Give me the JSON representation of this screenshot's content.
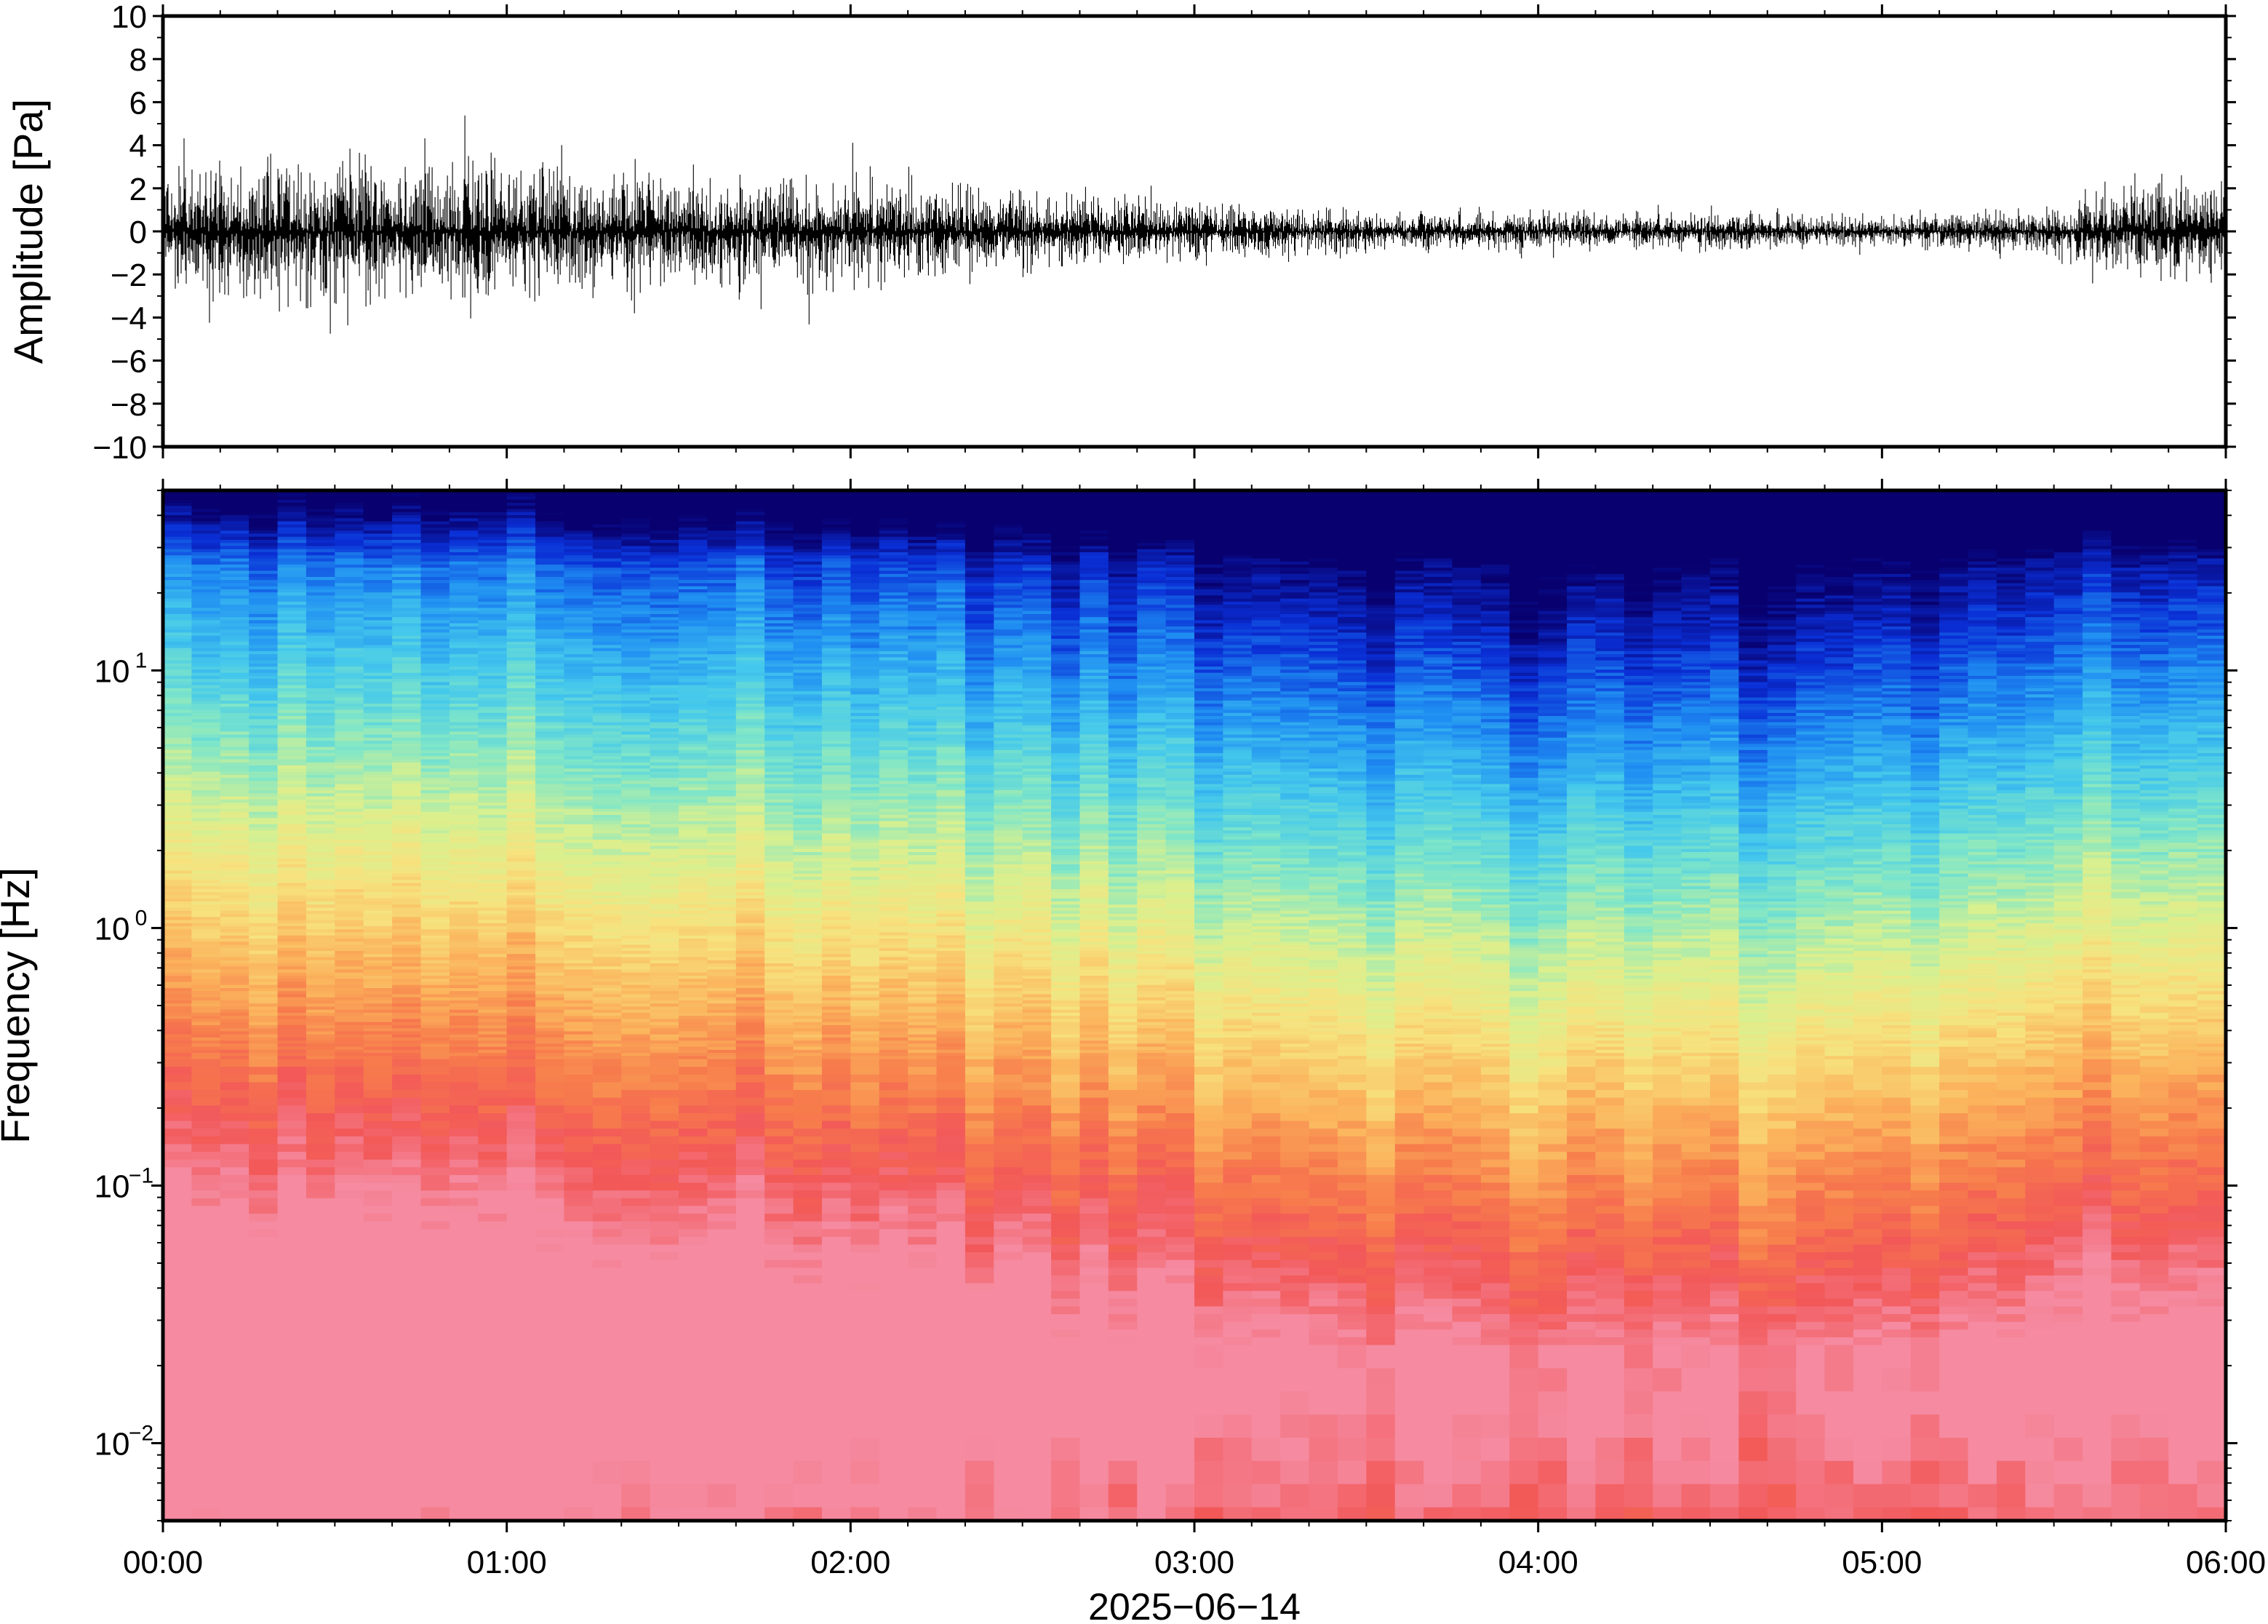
{
  "chart_data": [
    {
      "type": "line",
      "panel": "waveform",
      "ylabel": "Amplitude [Pa]",
      "ylim": [
        -10,
        10
      ],
      "yticks": [
        "10",
        "8",
        "6",
        "4",
        "2",
        "0",
        "−2",
        "−4",
        "−6",
        "−8",
        "−10"
      ],
      "xlim": [
        "00:00",
        "06:00"
      ],
      "grid": false,
      "color": "#000000",
      "envelope": {
        "x": [
          "00:00",
          "00:30",
          "01:00",
          "01:30",
          "02:00",
          "02:30",
          "03:00",
          "03:30",
          "04:00",
          "04:30",
          "05:00",
          "05:30",
          "05:45",
          "06:00"
        ],
        "typical_abs": [
          1.6,
          1.7,
          1.5,
          1.3,
          1.2,
          0.9,
          0.7,
          0.45,
          0.4,
          0.4,
          0.35,
          0.5,
          1.3,
          1.0
        ],
        "peak_abs": [
          3.2,
          3.8,
          3.0,
          2.7,
          2.8,
          2.2,
          1.4,
          1.0,
          1.3,
          0.9,
          0.8,
          1.2,
          2.9,
          2.0
        ]
      }
    },
    {
      "type": "heatmap",
      "panel": "spectrogram",
      "ylabel": "Frequency [Hz]",
      "yscale": "log",
      "ylim": [
        0.005,
        50
      ],
      "yticks": [
        {
          "base": "10",
          "exp": "1",
          "value": 10
        },
        {
          "base": "10",
          "exp": "0",
          "value": 1
        },
        {
          "base": "10",
          "exp": "−1",
          "value": 0.1
        },
        {
          "base": "10",
          "exp": "−2",
          "value": 0.01
        }
      ],
      "xlabel": "2025−06−14",
      "xticks": [
        "00:00",
        "01:00",
        "02:00",
        "03:00",
        "04:00",
        "05:00",
        "06:00"
      ],
      "colormap": [
        "#08006e",
        "#0a2fd6",
        "#1f8ef2",
        "#44c8ec",
        "#7fe6c8",
        "#d9f08f",
        "#f7e27e",
        "#fbb45c",
        "#f77c4c",
        "#f25858",
        "#f58aa0"
      ],
      "time_profile": {
        "x": [
          "00:00",
          "01:00",
          "02:00",
          "03:00",
          "04:00",
          "05:00",
          "05:45",
          "06:00"
        ],
        "relative_level": [
          1.0,
          1.0,
          0.88,
          0.66,
          0.48,
          0.5,
          0.76,
          0.68
        ]
      },
      "grid": false
    }
  ]
}
